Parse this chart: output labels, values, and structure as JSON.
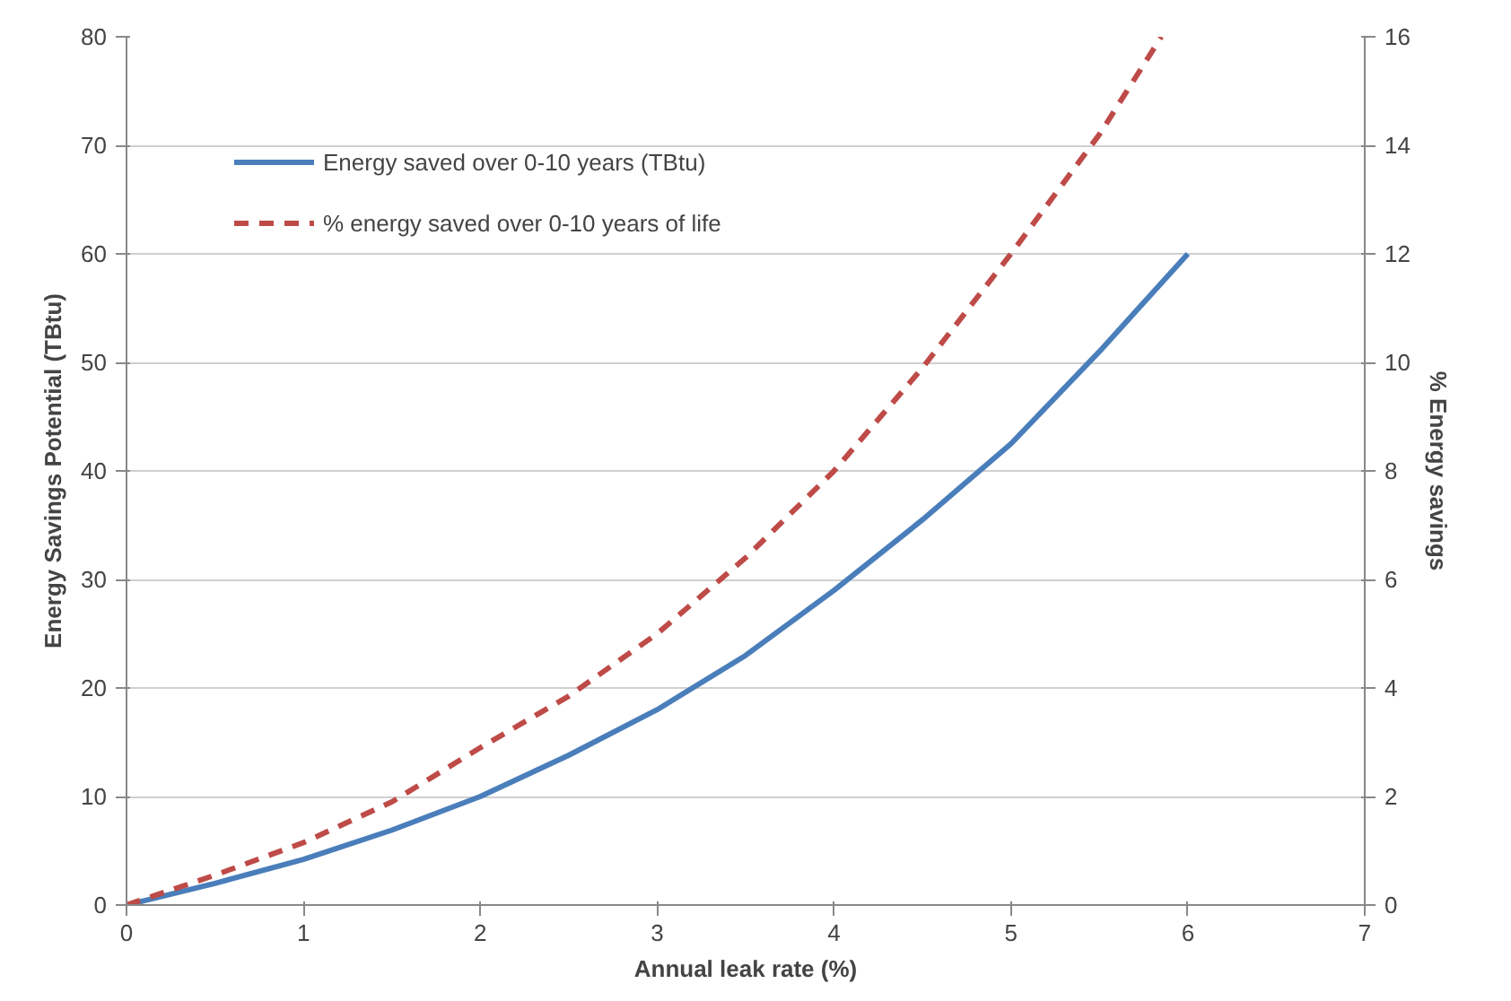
{
  "chart_data": {
    "type": "line",
    "xlabel": "Annual leak rate (%)",
    "ylabel": "Energy Savings Potential (TBtu)",
    "y2label": "% Energy savings",
    "xlim": [
      0,
      7
    ],
    "xticks": [
      0,
      1,
      2,
      3,
      4,
      5,
      6,
      7
    ],
    "ylim": [
      0,
      80
    ],
    "yticks": [
      0,
      10,
      20,
      30,
      40,
      50,
      60,
      70,
      80
    ],
    "y2lim": [
      0,
      16
    ],
    "y2ticks": [
      0,
      2,
      4,
      6,
      8,
      10,
      12,
      14,
      16
    ],
    "grid": "y",
    "legend": "top left",
    "series": [
      {
        "name": "Energy saved over 0-10 years (TBtu)",
        "color": "#4a7ebb",
        "line_style": "solid",
        "x": [
          0,
          0.5,
          1,
          1.5,
          2,
          2.5,
          3,
          3.5,
          4,
          4.5,
          5,
          5.5,
          6
        ],
        "values": [
          0,
          2,
          4.2,
          6.9,
          10,
          13.8,
          18,
          23,
          29,
          35.5,
          42.5,
          51,
          60
        ]
      },
      {
        "name": "% energy saved over 0-10 years of life",
        "color": "#be4b48",
        "line_style": "dashed",
        "axis": "y2",
        "x": [
          0,
          0.5,
          1,
          1.5,
          2,
          2.5,
          3,
          3.5,
          4,
          4.5,
          5,
          5.5,
          5.85
        ],
        "values": [
          0,
          0.55,
          1.15,
          1.9,
          2.9,
          3.85,
          5,
          6.4,
          8,
          9.9,
          12,
          14.2,
          16
        ]
      }
    ]
  }
}
